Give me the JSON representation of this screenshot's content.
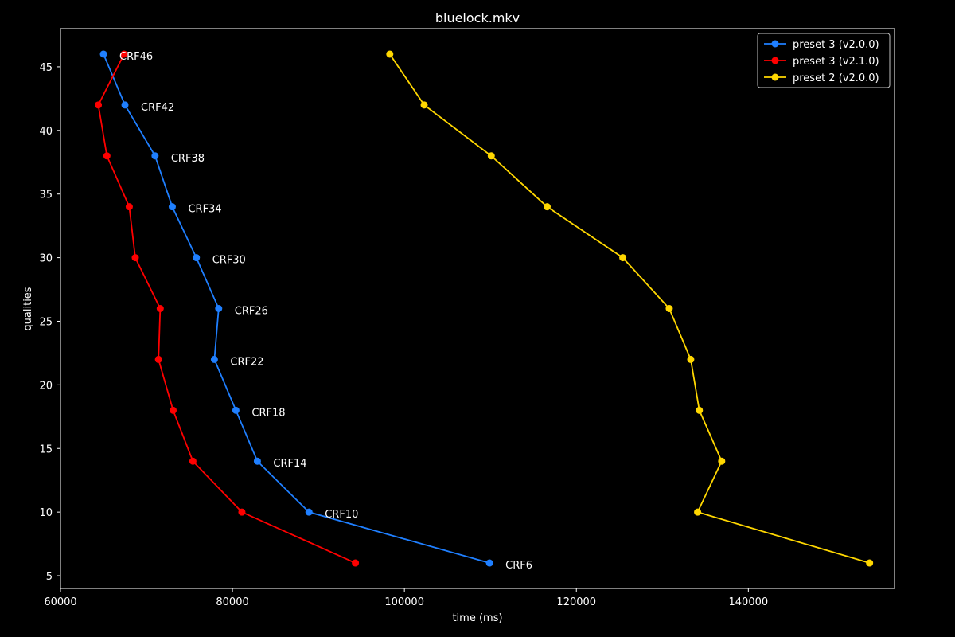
{
  "chart_data": {
    "type": "line",
    "title": "bluelock.mkv",
    "xlabel": "time (ms)",
    "ylabel": "qualities",
    "xlim": [
      60000,
      157000
    ],
    "ylim": [
      4,
      48
    ],
    "x_ticks": [
      60000,
      80000,
      100000,
      120000,
      140000
    ],
    "y_ticks": [
      5,
      10,
      15,
      20,
      25,
      30,
      35,
      40,
      45
    ],
    "legend_position": "top-right",
    "series": [
      {
        "name": "preset 3 (v2.0.0)",
        "color": "#1f7fff",
        "x": [
          65000,
          67500,
          71000,
          73000,
          75800,
          78400,
          77900,
          80400,
          82900,
          88900,
          109900
        ],
        "y": [
          46,
          42,
          38,
          34,
          30,
          26,
          22,
          18,
          14,
          10,
          6
        ],
        "point_labels": [
          "CRF46",
          "CRF42",
          "CRF38",
          "CRF34",
          "CRF30",
          "CRF26",
          "CRF22",
          "CRF18",
          "CRF14",
          "CRF10",
          "CRF6"
        ]
      },
      {
        "name": "preset 3 (v2.1.0)",
        "color": "#ff0000",
        "x": [
          67400,
          64400,
          65400,
          68000,
          68700,
          71600,
          71400,
          73100,
          75400,
          81100,
          94300
        ],
        "y": [
          46,
          42,
          38,
          34,
          30,
          26,
          22,
          18,
          14,
          10,
          6
        ]
      },
      {
        "name": "preset 2 (v2.0.0)",
        "color": "#ffd700",
        "x": [
          98300,
          102300,
          110100,
          116600,
          125400,
          130800,
          133300,
          134300,
          136900,
          134100,
          154100
        ],
        "y": [
          46,
          42,
          38,
          34,
          30,
          26,
          22,
          18,
          14,
          10,
          6
        ]
      }
    ]
  }
}
